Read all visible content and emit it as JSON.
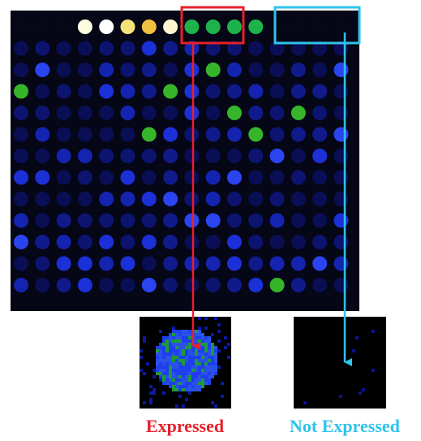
{
  "labels": {
    "expressed": "Expressed",
    "not_expressed": "Not Expressed"
  }
}
